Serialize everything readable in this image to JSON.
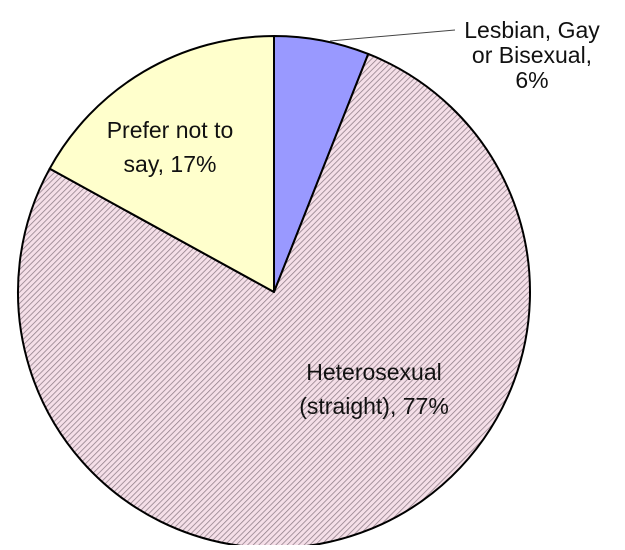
{
  "chart_data": {
    "type": "pie",
    "start": "12 o'clock, clockwise",
    "slices": [
      {
        "label": "Lesbian, Gay or Bisexual",
        "value": 6,
        "label_lines": [
          "Lesbian, Gay",
          "or Bisexual,",
          "6%"
        ],
        "color": "#9999ff",
        "fill_style": "solid",
        "label_position": "outside, top-right, with leader line"
      },
      {
        "label": "Heterosexual (straight)",
        "value": 77,
        "label_lines": [
          "Heterosexual",
          "(straight), 77%"
        ],
        "color": "#f5dfe8",
        "stripe_color": "#8d7c86",
        "fill_style": "diagonal hatch",
        "label_position": "inside"
      },
      {
        "label": "Prefer not to say",
        "value": 17,
        "label_lines": [
          "Prefer not to",
          "say, 17%"
        ],
        "color": "#ffffcc",
        "fill_style": "solid",
        "label_position": "inside"
      }
    ],
    "outline_color": "#000000",
    "legend": "none"
  }
}
